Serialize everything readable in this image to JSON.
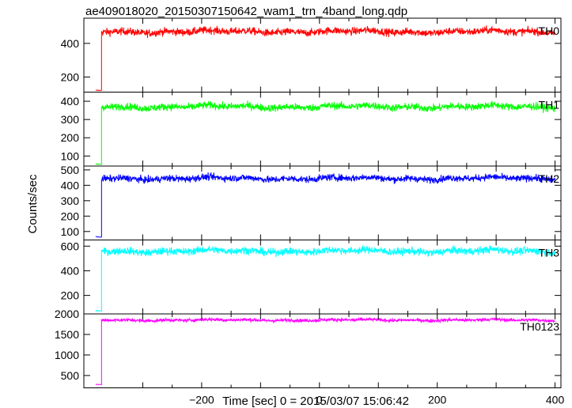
{
  "chart_data": {
    "type": "line",
    "title": "ae409018020_20150307150642_wam1_trn_4band_long.qdp",
    "xlabel": "Time [sec] 0 = 2015/03/07 15:06:42",
    "ylabel": "Counts/sec",
    "xlim": [
      -400,
      410
    ],
    "x_ticks": [
      -200,
      0,
      200,
      400
    ],
    "x_tick_labels": [
      "−200",
      "0",
      "200",
      "400"
    ],
    "data_start": -380,
    "data_step": -370,
    "data_end": 400,
    "panels": [
      {
        "name": "TH0",
        "color": "#ff0000",
        "ylim": [
          110,
          550
        ],
        "ticks": [
          200,
          400
        ],
        "tick_labels": [
          "200",
          "400"
        ],
        "pre_level": 120,
        "level": 470,
        "noise": 22
      },
      {
        "name": "TH1",
        "color": "#00ff00",
        "ylim": [
          45,
          450
        ],
        "ticks": [
          100,
          200,
          300,
          400
        ],
        "tick_labels": [
          "100",
          "200",
          "300",
          "400"
        ],
        "pre_level": 55,
        "level": 370,
        "noise": 20
      },
      {
        "name": "TH2",
        "color": "#0000ff",
        "ylim": [
          45,
          525
        ],
        "ticks": [
          100,
          200,
          300,
          400,
          500
        ],
        "tick_labels": [
          "100",
          "200",
          "300",
          "400",
          "500"
        ],
        "pre_level": 65,
        "level": 445,
        "noise": 22
      },
      {
        "name": "TH3",
        "color": "#00ffff",
        "ylim": [
          50,
          650
        ],
        "ticks": [
          200,
          400,
          600
        ],
        "tick_labels": [
          "200",
          "400",
          "600"
        ],
        "pre_level": 75,
        "level": 560,
        "noise": 30
      },
      {
        "name": "TH0123",
        "color": "#ff00ff",
        "ylim": [
          200,
          2000
        ],
        "ticks": [
          500,
          1000,
          1500,
          2000
        ],
        "tick_labels": [
          "500",
          "1000",
          "1500",
          "2000"
        ],
        "pre_level": 280,
        "level": 1850,
        "noise": 40
      }
    ]
  }
}
